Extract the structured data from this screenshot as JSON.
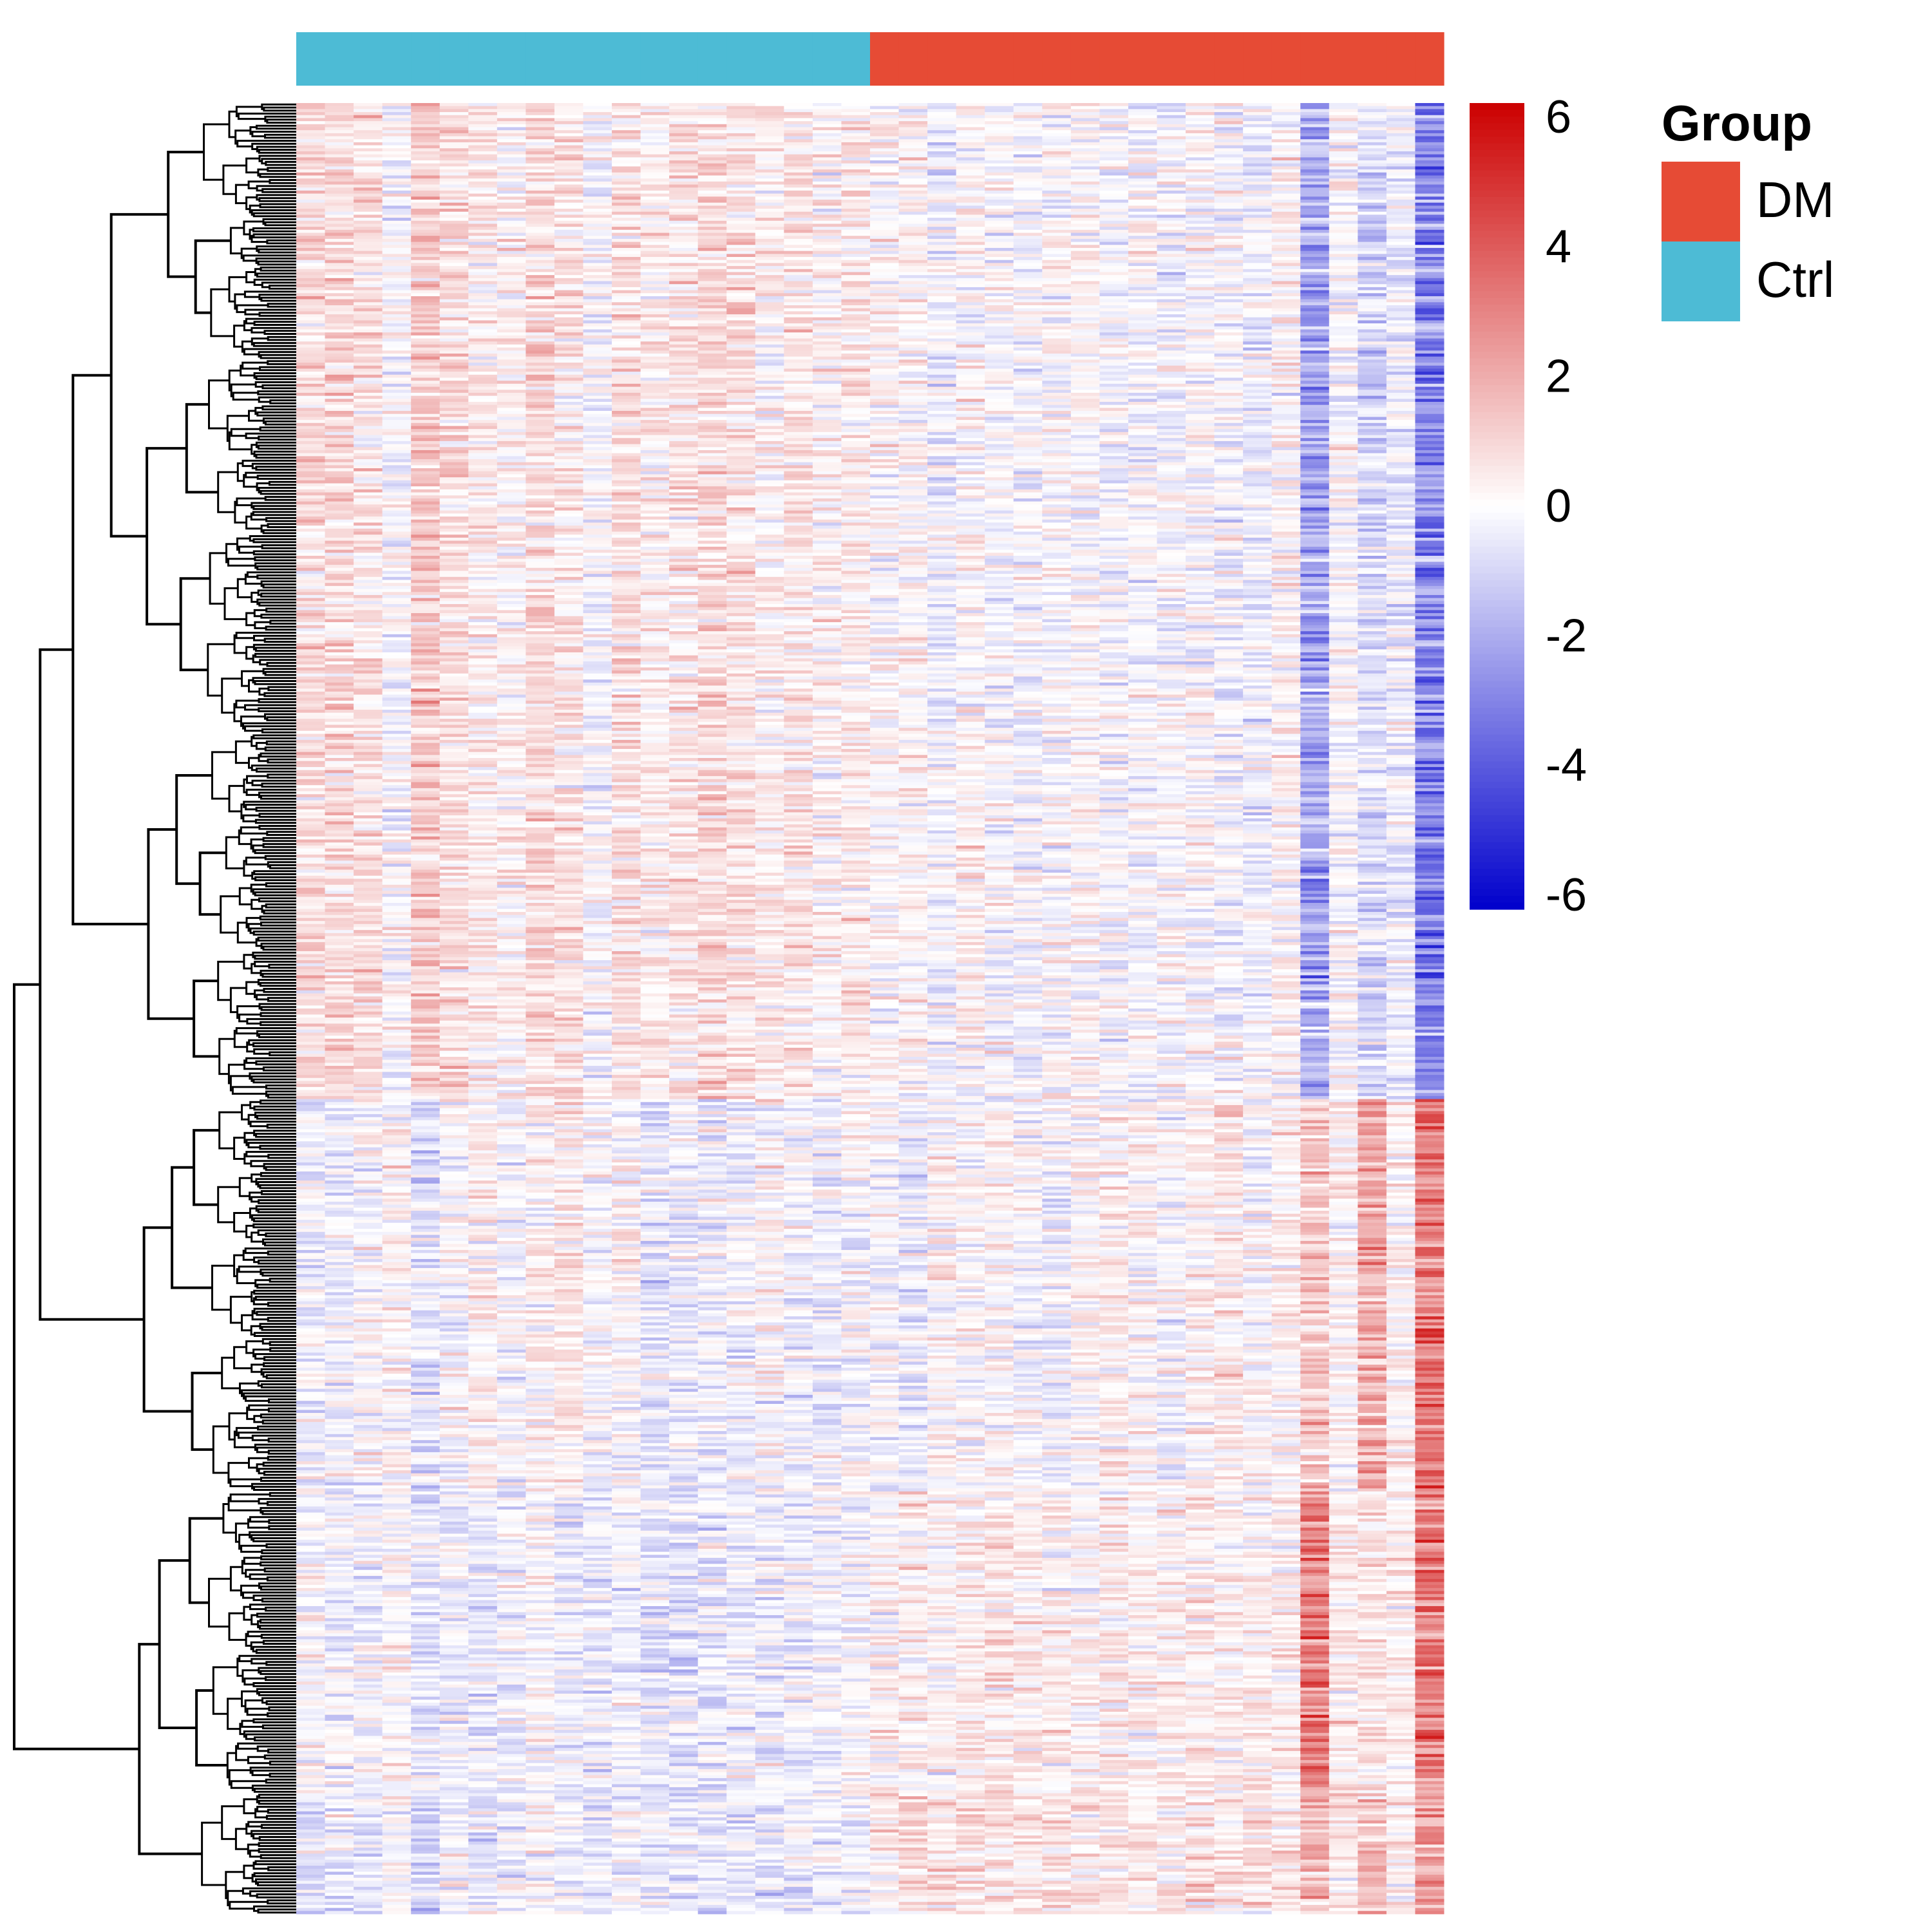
{
  "chart_data": {
    "type": "heatmap",
    "title": "",
    "xlabel": "",
    "ylabel": "",
    "columns": {
      "count": 40,
      "groups": [
        "Ctrl",
        "Ctrl",
        "Ctrl",
        "Ctrl",
        "Ctrl",
        "Ctrl",
        "Ctrl",
        "Ctrl",
        "Ctrl",
        "Ctrl",
        "Ctrl",
        "Ctrl",
        "Ctrl",
        "Ctrl",
        "Ctrl",
        "Ctrl",
        "Ctrl",
        "Ctrl",
        "Ctrl",
        "Ctrl",
        "DM",
        "DM",
        "DM",
        "DM",
        "DM",
        "DM",
        "DM",
        "DM",
        "DM",
        "DM",
        "DM",
        "DM",
        "DM",
        "DM",
        "DM",
        "DM",
        "DM",
        "DM",
        "DM",
        "DM"
      ]
    },
    "row_count": 600,
    "row_clusters": [
      {
        "rows": [
          0,
          330
        ],
        "column_means": [
          0.8,
          0.9,
          0.7,
          -0.1,
          1.2,
          0.8,
          0.4,
          0.3,
          0.9,
          0.6,
          -0.1,
          0.7,
          0.4,
          0.6,
          0.9,
          0.7,
          0.3,
          0.6,
          0.2,
          0.5,
          0.1,
          0.2,
          -0.3,
          0.2,
          -0.1,
          -0.2,
          0.0,
          0.1,
          -0.2,
          -0.1,
          -0.1,
          0.0,
          -0.2,
          -0.3,
          0.2,
          -2.0,
          0.0,
          -0.9,
          -0.4,
          -2.8
        ]
      },
      {
        "rows": [
          330,
          460
        ],
        "column_means": [
          -0.3,
          -0.3,
          -0.1,
          0.2,
          -0.6,
          0.0,
          0.3,
          -0.2,
          0.2,
          0.5,
          -0.1,
          0.1,
          -0.4,
          -0.4,
          -0.4,
          -0.2,
          0.1,
          -0.2,
          -0.3,
          0.0,
          -0.1,
          -0.5,
          0.2,
          0.0,
          0.2,
          -0.1,
          -0.2,
          0.2,
          0.3,
          0.2,
          -0.1,
          0.3,
          0.5,
          0.1,
          0.3,
          1.2,
          0.3,
          2.0,
          0.3,
          3.2
        ]
      },
      {
        "rows": [
          460,
          560
        ],
        "column_means": [
          -0.2,
          -0.3,
          -0.2,
          0.1,
          -0.5,
          -0.3,
          -0.4,
          -0.3,
          0.1,
          -0.3,
          -0.5,
          -0.3,
          -0.6,
          -0.6,
          -0.4,
          -0.3,
          -0.4,
          -0.3,
          -0.2,
          -0.2,
          0.2,
          0.3,
          0.2,
          0.4,
          0.6,
          0.4,
          0.3,
          0.2,
          0.4,
          0.3,
          0.3,
          0.4,
          0.3,
          0.3,
          0.3,
          3.0,
          0.5,
          0.6,
          0.4,
          3.2
        ]
      },
      {
        "rows": [
          560,
          600
        ],
        "column_means": [
          -0.6,
          -0.4,
          -0.5,
          0.0,
          -1.2,
          -0.4,
          -0.6,
          -0.4,
          0.1,
          -0.4,
          -0.6,
          -0.2,
          -0.5,
          -0.7,
          -0.6,
          -0.3,
          -0.5,
          -0.3,
          -0.2,
          -0.4,
          0.4,
          0.9,
          0.6,
          0.8,
          0.7,
          0.6,
          0.5,
          0.6,
          0.6,
          0.4,
          0.5,
          0.8,
          0.6,
          0.6,
          0.7,
          1.8,
          0.5,
          1.5,
          0.3,
          2.2
        ]
      }
    ],
    "color_scale": {
      "min": -6,
      "max": 6,
      "low": "#0000CC",
      "mid": "#FFFFFF",
      "high": "#CC0000",
      "ticks": [
        "6",
        "4",
        "2",
        "0",
        "-2",
        "-4",
        "-6"
      ]
    },
    "annotation_legend": {
      "title": "Group",
      "items": [
        {
          "label": "DM",
          "color": "#E64B35"
        },
        {
          "label": "Ctrl",
          "color": "#4DBBD5"
        }
      ]
    },
    "row_dendrogram": true,
    "grid": false
  }
}
